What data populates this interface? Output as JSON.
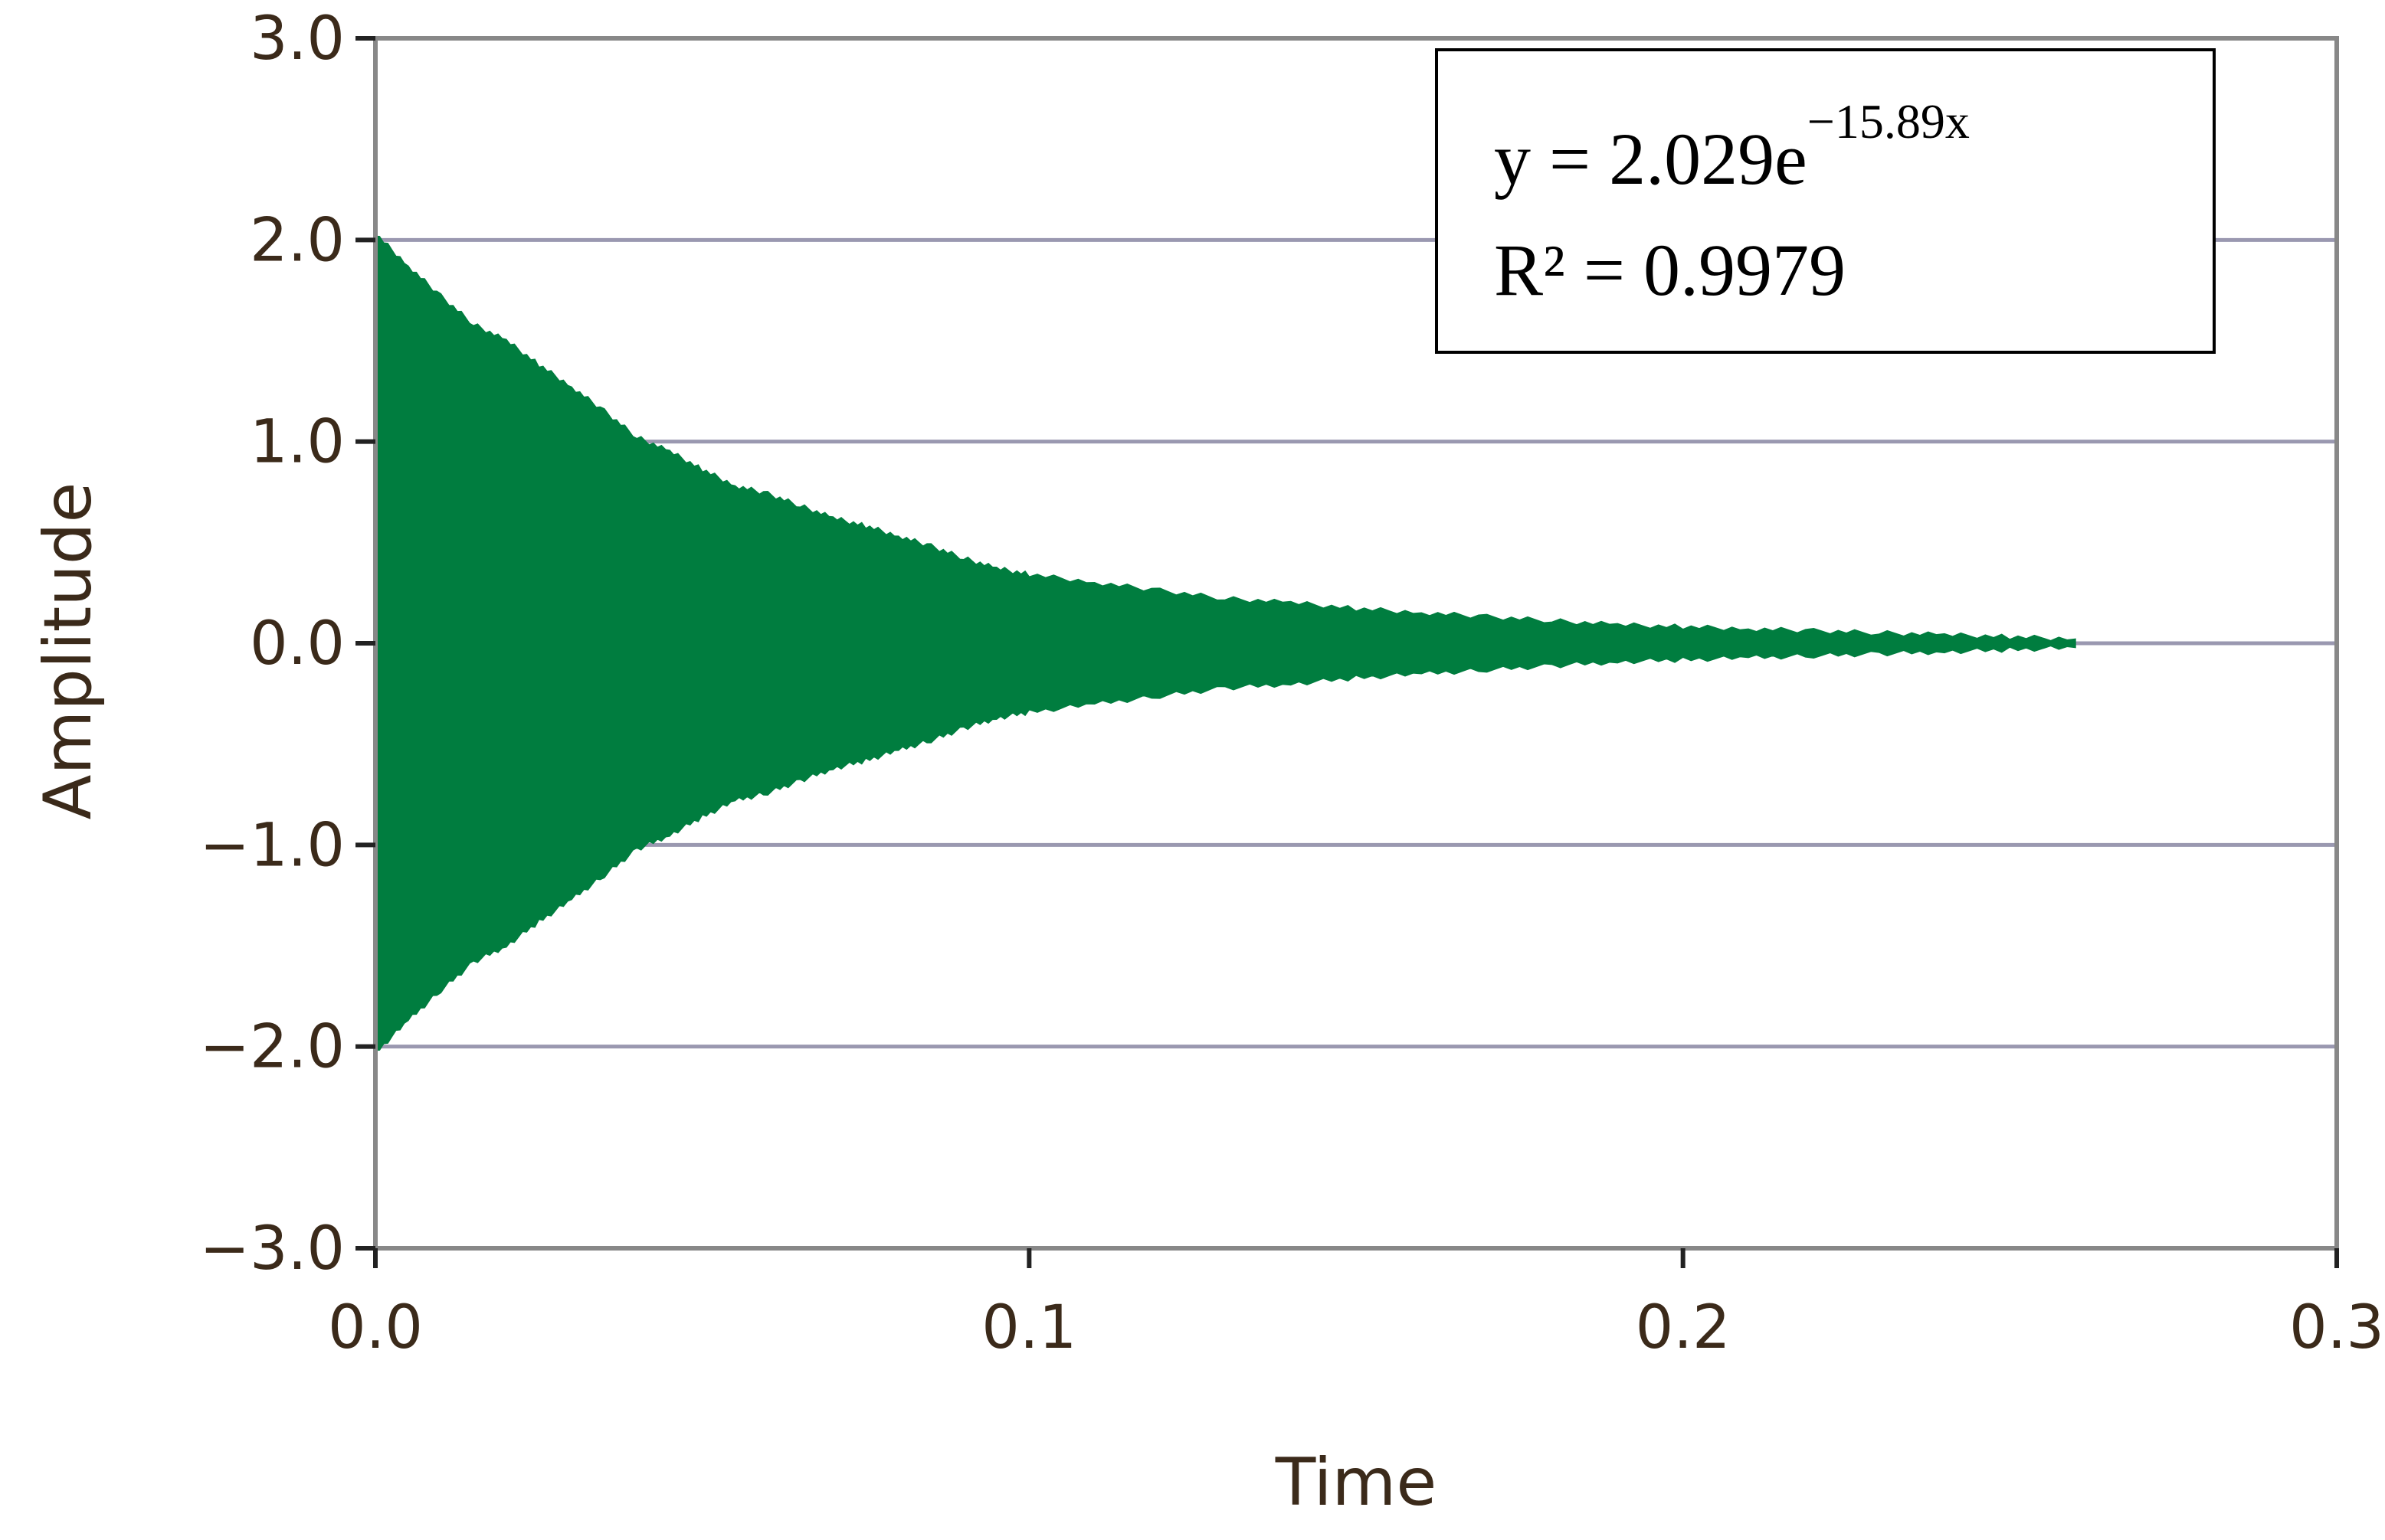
{
  "chart_data": {
    "type": "area",
    "xlabel": "Time",
    "ylabel": "Amplitude",
    "xlim": [
      0.0,
      0.3
    ],
    "ylim": [
      -3.0,
      3.0
    ],
    "x_ticks": [
      "0.0",
      "0.1",
      "0.2",
      "0.3"
    ],
    "y_ticks": [
      "3.0",
      "2.0",
      "1.0",
      "0.0",
      "-1.0",
      "-2.0",
      "-3.0"
    ],
    "grid": "horizontal",
    "series": [
      {
        "color": "#007d3f",
        "x": [
          0.0,
          0.005,
          0.01,
          0.015,
          0.02,
          0.025,
          0.03,
          0.035,
          0.04,
          0.045,
          0.05,
          0.055,
          0.06,
          0.065,
          0.07,
          0.075,
          0.08,
          0.085,
          0.09,
          0.095,
          0.1,
          0.11,
          0.12,
          0.13,
          0.14,
          0.15,
          0.16,
          0.17,
          0.18,
          0.19,
          0.2,
          0.21,
          0.22,
          0.23,
          0.24,
          0.25,
          0.26
        ],
        "upper": [
          2.03,
          1.87,
          1.72,
          1.58,
          1.5,
          1.38,
          1.27,
          1.15,
          1.02,
          0.95,
          0.86,
          0.78,
          0.74,
          0.68,
          0.62,
          0.58,
          0.53,
          0.48,
          0.42,
          0.37,
          0.34,
          0.3,
          0.26,
          0.22,
          0.2,
          0.17,
          0.15,
          0.13,
          0.11,
          0.09,
          0.08,
          0.07,
          0.06,
          0.05,
          0.04,
          0.03,
          0.02
        ],
        "lower": [
          -2.03,
          -1.87,
          -1.72,
          -1.58,
          -1.5,
          -1.38,
          -1.27,
          -1.15,
          -1.02,
          -0.95,
          -0.86,
          -0.78,
          -0.74,
          -0.68,
          -0.62,
          -0.58,
          -0.53,
          -0.48,
          -0.42,
          -0.37,
          -0.34,
          -0.3,
          -0.26,
          -0.22,
          -0.2,
          -0.17,
          -0.15,
          -0.13,
          -0.11,
          -0.09,
          -0.08,
          -0.07,
          -0.06,
          -0.05,
          -0.04,
          -0.03,
          -0.02
        ]
      }
    ],
    "annotation": {
      "equation_base": "y = 2.029e",
      "equation_exponent": "−15.89x",
      "r_squared": "R² = 0.9979",
      "placement": "top-right"
    }
  }
}
